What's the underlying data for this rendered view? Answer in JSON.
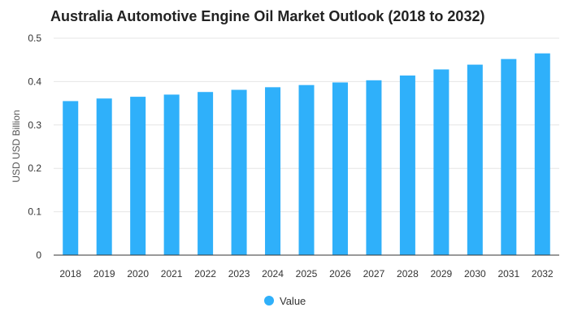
{
  "chart_data": {
    "type": "bar",
    "title": "Australia Automotive Engine Oil Market Outlook (2018 to 2032)",
    "xlabel": "",
    "ylabel": "USD USD Billion",
    "categories": [
      "2018",
      "2019",
      "2020",
      "2021",
      "2022",
      "2023",
      "2024",
      "2025",
      "2026",
      "2027",
      "2028",
      "2029",
      "2030",
      "2031",
      "2032"
    ],
    "series": [
      {
        "name": "Value",
        "color": "#2fb0fa",
        "values": [
          0.355,
          0.361,
          0.365,
          0.37,
          0.376,
          0.381,
          0.387,
          0.392,
          0.398,
          0.403,
          0.414,
          0.428,
          0.439,
          0.452,
          0.465
        ]
      }
    ],
    "ylim": [
      0,
      0.5
    ],
    "yticks": [
      "0",
      "0.1",
      "0.2",
      "0.3",
      "0.4",
      "0.5"
    ],
    "grid": true,
    "legend_position": "bottom-center"
  }
}
